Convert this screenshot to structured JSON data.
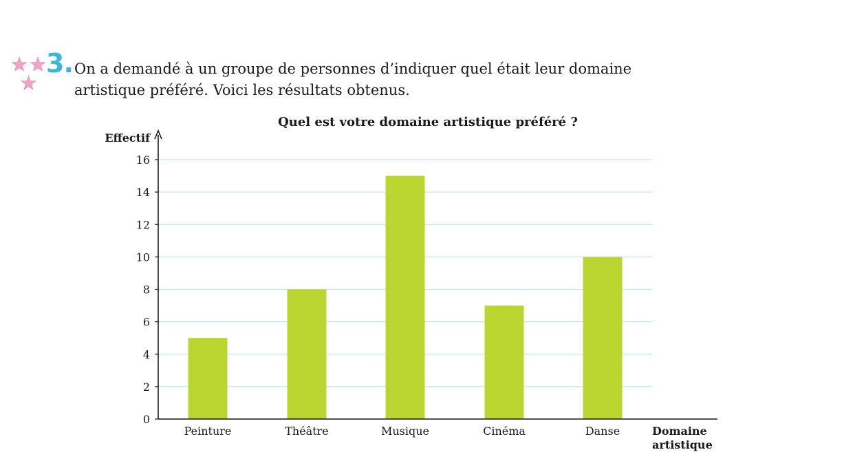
{
  "exercise": {
    "number": "3.",
    "difficulty_icon": "three-pink-stars",
    "star_color": "#f2a2c4",
    "number_color": "#3bb6d8",
    "question_line1": "On a demandé à un groupe de personnes d’indiquer quel était leur domaine",
    "question_line2": "artistique préféré. Voici les résultats obtenus."
  },
  "chart_data": {
    "type": "bar",
    "title": "Quel est votre domaine artistique préféré ?",
    "ylabel": "Effectif",
    "xlabel_line1": "Domaine",
    "xlabel_line2": "artistique",
    "categories": [
      "Peinture",
      "Théâtre",
      "Musique",
      "Cinéma",
      "Danse"
    ],
    "values": [
      5,
      8,
      15,
      7,
      10
    ],
    "ylim": [
      0,
      16
    ],
    "yticks": [
      0,
      2,
      4,
      6,
      8,
      10,
      12,
      14,
      16
    ],
    "grid": true,
    "bar_color": "#bcd631",
    "grid_color": "#bfe6f0",
    "axis_color": "#1a1a1a"
  }
}
